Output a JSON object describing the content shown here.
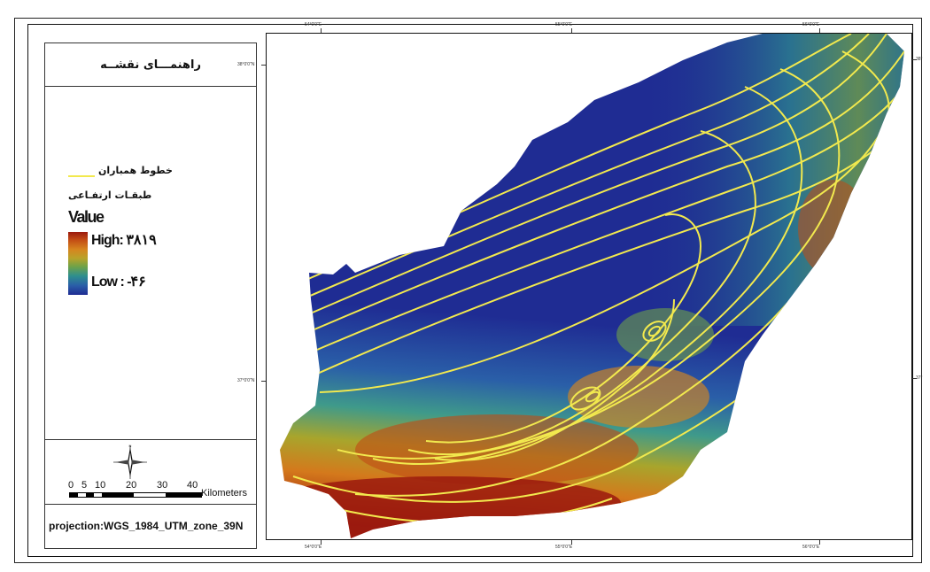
{
  "legend": {
    "title": "راهنمـــای نقشــه",
    "contour_label": "خطوط همباران",
    "elevation_label": "طبقـات ارتفـاعی",
    "value_label": "Value",
    "high_label": "High: ۳۸۱۹",
    "low_label": "Low : -۴۶",
    "ramp_colors": [
      "#9b1a0e",
      "#c24a14",
      "#d6861f",
      "#b8a32a",
      "#6fa248",
      "#2e8f8e",
      "#2a5fa8",
      "#1f2c93"
    ],
    "contour_color": "#f2e94e"
  },
  "scale_bar": {
    "ticks": [
      "0",
      "5",
      "10",
      "20",
      "30",
      "40"
    ],
    "units": "Kilometers"
  },
  "north_arrow": {
    "letter": "N"
  },
  "projection": "projection:WGS_1984_UTM_zone_39N",
  "graticule": {
    "top": [
      "54°0'0\"E",
      "55°0'0\"E",
      "56°0'0\"E"
    ],
    "bottom": [
      "54°0'0\"E",
      "55°0'0\"E",
      "56°0'0\"E"
    ],
    "left": [
      "38°0'0\"N",
      "37°0'0\"N"
    ],
    "right": [
      "38°",
      "37°"
    ]
  },
  "map": {
    "elevation_range": {
      "high": 3819,
      "low": -46
    }
  }
}
